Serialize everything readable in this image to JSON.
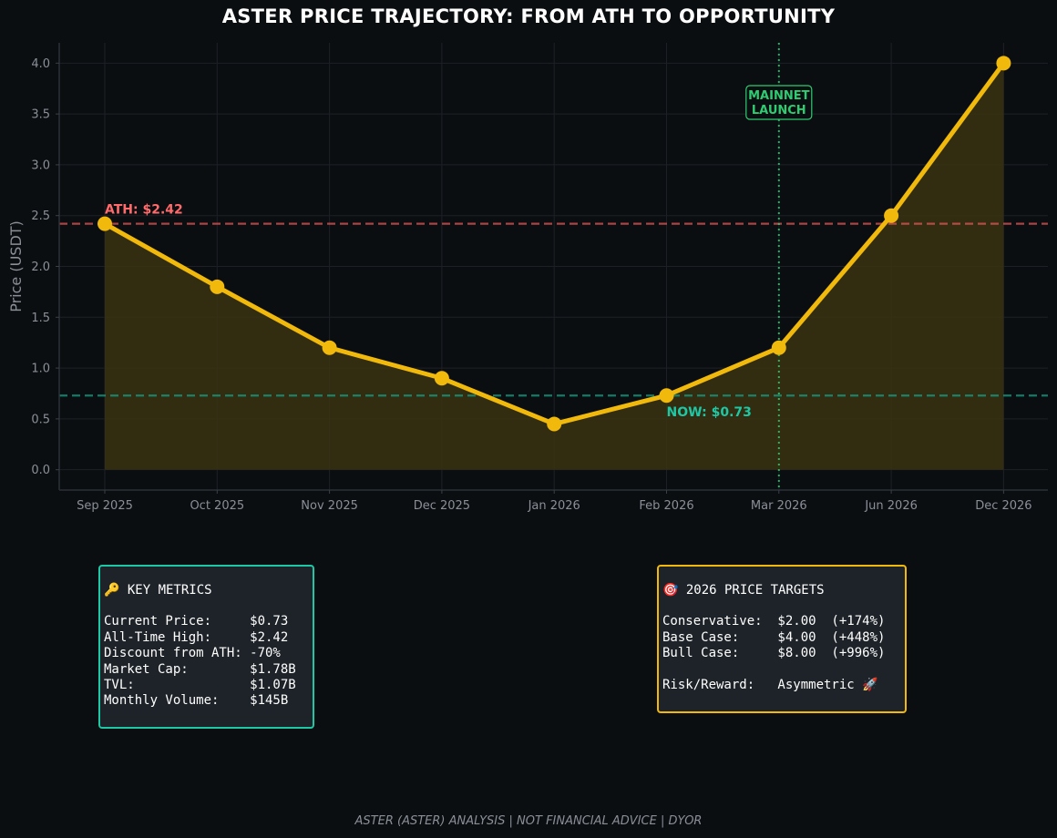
{
  "chart_data": {
    "type": "line",
    "title": "ASTER PRICE TRAJECTORY: FROM ATH TO OPPORTUNITY",
    "ylabel": "Price (USDT)",
    "xlabel": "",
    "categories": [
      "Sep 2025",
      "Oct 2025",
      "Nov 2025",
      "Dec 2025",
      "Jan 2026",
      "Feb 2026",
      "Mar 2026",
      "Jun 2026",
      "Dec 2026"
    ],
    "series": [
      {
        "values": [
          2.42,
          1.8,
          1.2,
          0.9,
          0.45,
          0.73,
          1.2,
          2.5,
          4.0
        ]
      }
    ],
    "ylim": [
      -0.2,
      4.2
    ],
    "yticks": [
      "0.0",
      "0.5",
      "1.0",
      "1.5",
      "2.0",
      "2.5",
      "3.0",
      "3.5",
      "4.0"
    ],
    "grid": true,
    "reference_lines": [
      {
        "axis": "y",
        "value": 2.42,
        "label": "ATH: $2.42",
        "color": "#e05555"
      },
      {
        "axis": "y",
        "value": 0.73,
        "label": "NOW: $0.73",
        "color": "#16a085"
      }
    ],
    "event_line": {
      "category": "Mar 2026",
      "label_lines": [
        "MAINNET",
        "LAUNCH"
      ],
      "color": "#2ecc71"
    }
  },
  "colors": {
    "line": "#f0b90b",
    "fill": "#3a3212",
    "ath": "#ff6b6b",
    "now": "#1ec8a5",
    "event": "#2ecc71"
  },
  "panels": {
    "metrics": {
      "heading": "🔑 KEY METRICS",
      "rows": [
        "Current Price:     $0.73",
        "All-Time High:     $2.42",
        "Discount from ATH: -70%",
        "Market Cap:        $1.78B",
        "TVL:               $1.07B",
        "Monthly Volume:    $145B"
      ]
    },
    "targets": {
      "heading": "🎯 2026 PRICE TARGETS",
      "rows": [
        "Conservative:  $2.00  (+174%)",
        "Base Case:     $4.00  (+448%)",
        "Bull Case:     $8.00  (+996%)"
      ],
      "risk": "Risk/Reward:   Asymmetric 🚀"
    }
  },
  "footer": "ASTER (ASTER) ANALYSIS | NOT FINANCIAL ADVICE | DYOR"
}
